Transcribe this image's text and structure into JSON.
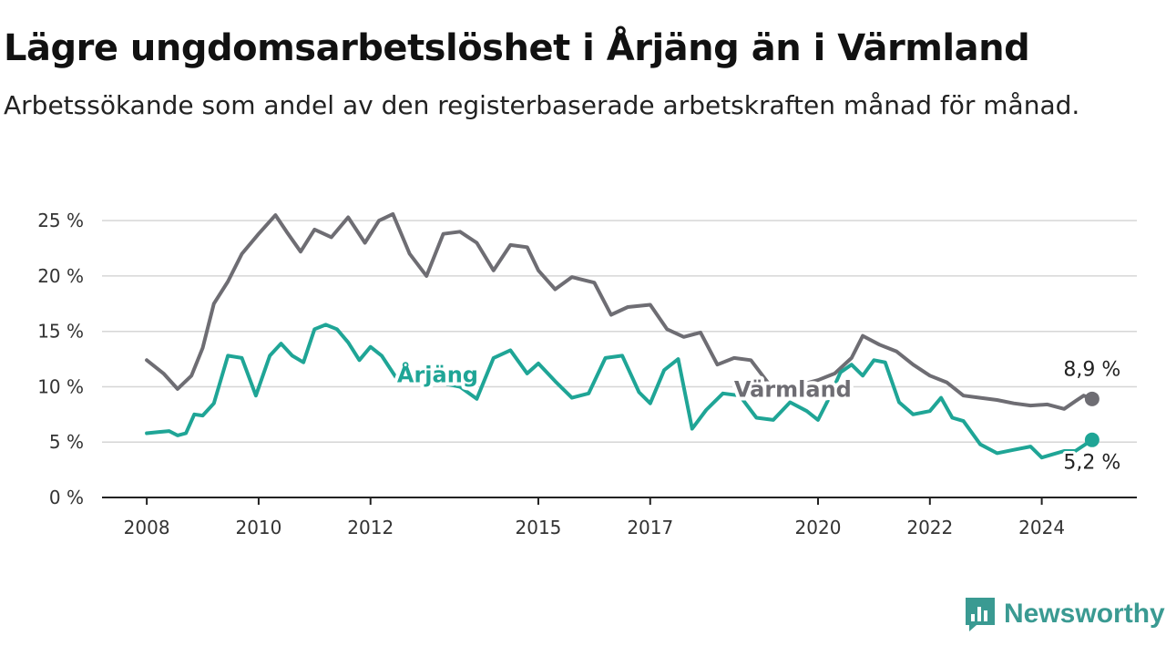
{
  "title": "Lägre ungdomsarbetslöshet i Årjäng än i Värmland",
  "subtitle": "Arbetssökande som andel av den registerbaserade arbetskraften månad för månad.",
  "brand": {
    "name": "Newsworthy",
    "icon": "newsworthy-logo-icon",
    "color": "#3a9a92"
  },
  "chart_data": {
    "type": "line",
    "x_unit": "year",
    "x_ticks": [
      2008,
      2010,
      2012,
      2015,
      2017,
      2020,
      2022,
      2024
    ],
    "x_tick_labels": [
      "2008",
      "2010",
      "2012",
      "2015",
      "2017",
      "2020",
      "2022",
      "2024"
    ],
    "y_ticks": [
      0,
      5,
      10,
      15,
      20,
      25
    ],
    "y_tick_labels": [
      "0 %",
      "5 %",
      "10 %",
      "15 %",
      "20 %",
      "25 %"
    ],
    "xlim": [
      2007.2,
      2025.7
    ],
    "ylim": [
      0,
      26
    ],
    "grid": "horizontal",
    "series": [
      {
        "name": "Värmland",
        "color": "#6e6d73",
        "end_label": "8,9 %",
        "x": [
          2008.0,
          2008.3,
          2008.55,
          2008.8,
          2009.0,
          2009.2,
          2009.45,
          2009.7,
          2010.0,
          2010.3,
          2010.5,
          2010.75,
          2011.0,
          2011.3,
          2011.6,
          2011.9,
          2012.15,
          2012.4,
          2012.7,
          2013.0,
          2013.3,
          2013.6,
          2013.9,
          2014.2,
          2014.5,
          2014.8,
          2015.0,
          2015.3,
          2015.6,
          2016.0,
          2016.3,
          2016.6,
          2017.0,
          2017.3,
          2017.6,
          2017.9,
          2018.2,
          2018.5,
          2018.8,
          2019.1,
          2019.4,
          2019.7,
          2020.0,
          2020.3,
          2020.6,
          2020.8,
          2021.1,
          2021.4,
          2021.7,
          2022.0,
          2022.3,
          2022.6,
          2022.9,
          2023.2,
          2023.5,
          2023.8,
          2024.1,
          2024.4,
          2024.6,
          2024.75,
          2024.9
        ],
        "values": [
          12.4,
          11.2,
          9.8,
          11.0,
          13.5,
          17.5,
          19.5,
          22.0,
          23.8,
          25.5,
          24.0,
          22.2,
          24.2,
          23.5,
          25.3,
          23.0,
          25.0,
          25.6,
          22.0,
          20.0,
          23.8,
          24.0,
          23.0,
          20.5,
          22.8,
          22.6,
          20.5,
          18.8,
          19.9,
          19.4,
          16.5,
          17.2,
          17.4,
          15.2,
          14.5,
          14.9,
          12.0,
          12.6,
          12.4,
          10.4,
          9.5,
          10.2,
          10.6,
          11.2,
          12.6,
          14.6,
          13.8,
          13.2,
          12.0,
          11.0,
          10.4,
          9.2,
          9.0,
          8.8,
          8.5,
          8.3,
          8.4,
          8.0,
          8.7,
          9.2,
          8.9
        ]
      },
      {
        "name": "Årjäng",
        "color": "#1fa596",
        "end_label": "5,2 %",
        "x": [
          2008.0,
          2008.2,
          2008.4,
          2008.55,
          2008.7,
          2008.85,
          2009.0,
          2009.2,
          2009.45,
          2009.7,
          2009.95,
          2010.2,
          2010.4,
          2010.6,
          2010.8,
          2011.0,
          2011.2,
          2011.4,
          2011.6,
          2011.8,
          2012.0,
          2012.2,
          2012.5,
          2012.8,
          2013.1,
          2013.3,
          2013.6,
          2013.9,
          2014.2,
          2014.5,
          2014.8,
          2015.0,
          2015.3,
          2015.6,
          2015.9,
          2016.2,
          2016.5,
          2016.8,
          2017.0,
          2017.25,
          2017.5,
          2017.75,
          2018.0,
          2018.3,
          2018.6,
          2018.9,
          2019.2,
          2019.5,
          2019.8,
          2020.0,
          2020.2,
          2020.4,
          2020.6,
          2020.8,
          2021.0,
          2021.2,
          2021.45,
          2021.7,
          2022.0,
          2022.2,
          2022.4,
          2022.6,
          2022.9,
          2023.2,
          2023.5,
          2023.8,
          2024.0,
          2024.2,
          2024.4,
          2024.6,
          2024.9
        ],
        "values": [
          5.8,
          5.9,
          6.0,
          5.6,
          5.8,
          7.5,
          7.4,
          8.5,
          12.8,
          12.6,
          9.2,
          12.8,
          13.9,
          12.8,
          12.2,
          15.2,
          15.6,
          15.2,
          14.0,
          12.4,
          13.6,
          12.8,
          10.5,
          10.8,
          11.6,
          10.3,
          10.0,
          8.9,
          12.6,
          13.3,
          11.2,
          12.1,
          10.5,
          9.0,
          9.4,
          12.6,
          12.8,
          9.5,
          8.5,
          11.5,
          12.5,
          6.2,
          7.9,
          9.4,
          9.2,
          7.2,
          7.0,
          8.6,
          7.8,
          7.0,
          9.0,
          11.3,
          12.0,
          11.0,
          12.4,
          12.2,
          8.6,
          7.5,
          7.8,
          9.0,
          7.2,
          6.9,
          4.8,
          4.0,
          4.3,
          4.6,
          3.6,
          3.9,
          4.2,
          4.2,
          5.2
        ]
      }
    ]
  }
}
